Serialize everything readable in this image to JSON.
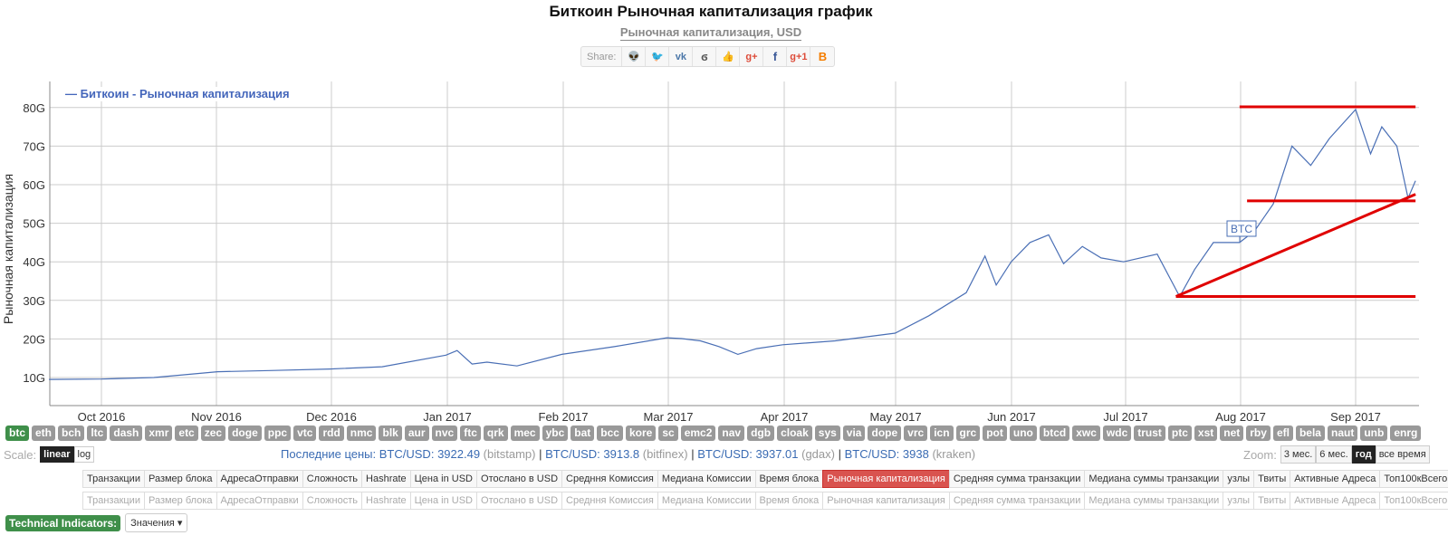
{
  "header": {
    "title": "Биткоин Рыночная капитализация график",
    "subtitle": "Рыночная капитализация, USD"
  },
  "share": {
    "label": "Share:",
    "icons": [
      {
        "name": "reddit-icon",
        "glyph": "👽",
        "color": "#999999"
      },
      {
        "name": "twitter-icon",
        "glyph": "🐦",
        "color": "#3fa9d8"
      },
      {
        "name": "vk-icon",
        "glyph": "vk",
        "color": "#4a76a8"
      },
      {
        "name": "weibo-icon",
        "glyph": "ϭ",
        "color": "#555555"
      },
      {
        "name": "like-icon",
        "glyph": "👍",
        "color": "#5b7fbf"
      },
      {
        "name": "google-plus-icon",
        "glyph": "g+",
        "color": "#dd4b39"
      },
      {
        "name": "facebook-icon",
        "glyph": "f",
        "color": "#3b5998"
      },
      {
        "name": "google-plus-one-icon",
        "glyph": "g+1",
        "color": "#dd4b39"
      },
      {
        "name": "blogger-icon",
        "glyph": "B",
        "color": "#f57d00"
      }
    ]
  },
  "chart_data": {
    "type": "line",
    "title": "Биткоин Рыночная капитализация график",
    "subtitle": "Рыночная капитализация, USD",
    "xlabel": "",
    "ylabel": "Рыночная капитализация",
    "yticks": [
      "10G",
      "20G",
      "30G",
      "40G",
      "50G",
      "60G",
      "70G",
      "80G"
    ],
    "ylim": [
      3,
      85
    ],
    "xticks": [
      "Oct 2016",
      "Nov 2016",
      "Dec 2016",
      "Jan 2017",
      "Feb 2017",
      "Mar 2017",
      "Apr 2017",
      "May 2017",
      "Jun 2017",
      "Jul 2017",
      "Aug 2017",
      "Sep 2017"
    ],
    "grid": true,
    "legend": {
      "position": "top-left",
      "entries": [
        "Биткоин - Рыночная капитализация"
      ]
    },
    "annotations": [
      "BTC"
    ],
    "series": [
      {
        "name": "Биткоин - Рыночная капитализация",
        "color": "#4a6fb5",
        "unit": "G USD",
        "x": [
          "2016-09-17",
          "2016-10-01",
          "2016-10-15",
          "2016-11-01",
          "2016-11-15",
          "2016-12-01",
          "2016-12-15",
          "2017-01-01",
          "2017-01-04",
          "2017-01-08",
          "2017-01-12",
          "2017-01-20",
          "2017-02-01",
          "2017-02-15",
          "2017-03-01",
          "2017-03-05",
          "2017-03-10",
          "2017-03-15",
          "2017-03-20",
          "2017-03-25",
          "2017-04-01",
          "2017-04-15",
          "2017-05-01",
          "2017-05-10",
          "2017-05-20",
          "2017-05-25",
          "2017-05-28",
          "2017-06-01",
          "2017-06-06",
          "2017-06-11",
          "2017-06-15",
          "2017-06-20",
          "2017-06-25",
          "2017-07-01",
          "2017-07-10",
          "2017-07-16",
          "2017-07-20",
          "2017-07-25",
          "2017-08-01",
          "2017-08-05",
          "2017-08-10",
          "2017-08-15",
          "2017-08-20",
          "2017-08-25",
          "2017-09-01",
          "2017-09-05",
          "2017-09-08",
          "2017-09-12",
          "2017-09-15",
          "2017-09-17"
        ],
        "values": [
          9.5,
          9.6,
          10.0,
          11.5,
          11.8,
          12.2,
          12.8,
          15.8,
          17.0,
          13.5,
          14.0,
          13.0,
          16.0,
          18.0,
          20.3,
          20.1,
          19.5,
          18.0,
          16.0,
          17.5,
          18.5,
          19.5,
          21.5,
          26.0,
          32.0,
          41.5,
          34.0,
          40.0,
          45.0,
          47.0,
          39.5,
          44.0,
          41.0,
          40.0,
          42.0,
          31.0,
          38.0,
          45.0,
          45.0,
          48.0,
          55.0,
          70.0,
          65.0,
          72.0,
          79.5,
          68.0,
          75.0,
          70.0,
          56.5,
          61.0
        ]
      }
    ],
    "overlays": [
      {
        "type": "hline",
        "color": "#e00000",
        "value": 80.2,
        "from": "2017-08-01",
        "to": "2017-09-17"
      },
      {
        "type": "hline",
        "color": "#e00000",
        "value": 55.8,
        "from": "2017-08-03",
        "to": "2017-09-17"
      },
      {
        "type": "hline",
        "color": "#e00000",
        "value": 31.0,
        "from": "2017-07-15",
        "to": "2017-09-17"
      },
      {
        "type": "trendline",
        "color": "#e00000",
        "from_value": 31.0,
        "to_value": 57.5,
        "from": "2017-07-15",
        "to": "2017-09-17"
      }
    ]
  },
  "coins": [
    "btc",
    "eth",
    "bch",
    "ltc",
    "dash",
    "xmr",
    "etc",
    "zec",
    "doge",
    "ppc",
    "vtc",
    "rdd",
    "nmc",
    "blk",
    "aur",
    "nvc",
    "ftc",
    "qrk",
    "mec",
    "ybc",
    "bat",
    "bcc",
    "kore",
    "sc",
    "emc2",
    "nav",
    "dgb",
    "cloak",
    "sys",
    "via",
    "dope",
    "vrc",
    "icn",
    "grc",
    "pot",
    "uno",
    "btcd",
    "xwc",
    "wdc",
    "trust",
    "ptc",
    "xst",
    "net",
    "rby",
    "efl",
    "bela",
    "naut",
    "unb",
    "enrg"
  ],
  "active_coin": "btc",
  "scale": {
    "label": "Scale:",
    "options": [
      "linear",
      "log"
    ],
    "selected": "linear"
  },
  "prices": {
    "label": "Последние цены:",
    "items": [
      {
        "pair": "BTC/USD:",
        "value": "3922.49",
        "exchange": "(bitstamp)"
      },
      {
        "pair": "BTC/USD:",
        "value": "3913.8",
        "exchange": "(bitfinex)"
      },
      {
        "pair": "BTC/USD:",
        "value": "3937.01",
        "exchange": "(gdax)"
      },
      {
        "pair": "BTC/USD:",
        "value": "3938",
        "exchange": "(kraken)"
      }
    ]
  },
  "zoom": {
    "label": "Zoom:",
    "options": [
      "3 мес.",
      "6 мес.",
      "год",
      "все время"
    ],
    "selected": "год"
  },
  "metric_tabs": [
    "Транзакции",
    "Размер блока",
    "АдресаОтправки",
    "Сложность",
    "Hashrate",
    "Цена in USD",
    "Отослано в USD",
    "Средння Комиссия",
    "Медиана Комиссии",
    "Время блока",
    "Рыночная капитализация",
    "Средняя сумма транзакции",
    "Медиана суммы транзакции",
    "узлы",
    "Твиты",
    "Активные Адреса",
    "Топ100кВсего"
  ],
  "active_metric": "Рыночная капитализация",
  "technical_indicators": {
    "label": "Technical Indicators:",
    "dropdown": "Значения"
  }
}
